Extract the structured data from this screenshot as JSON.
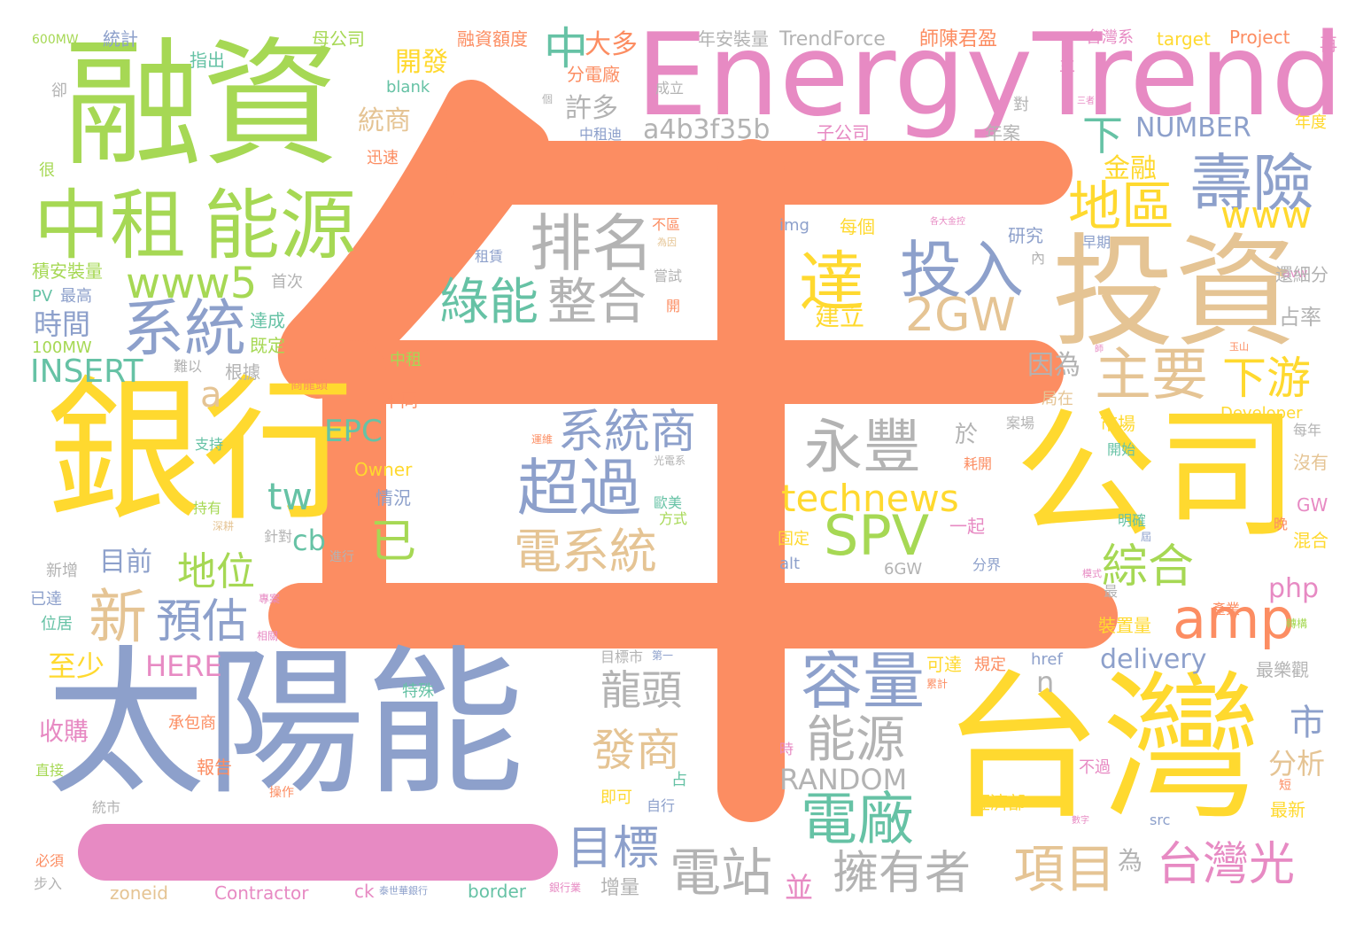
{
  "palette": {
    "orange": "#fc8d62",
    "blue": "#8da0cb",
    "pink": "#e78ac3",
    "green": "#a6d854",
    "yellow": "#ffd92f",
    "tan": "#e5c494",
    "gray": "#b3b3b3",
    "teal": "#66c2a5"
  },
  "words": [
    {
      "text": "年",
      "color": "orange",
      "size": 0,
      "drawn_as": "shape"
    },
    {
      "text": "EnergyTrend",
      "color": "pink"
    },
    {
      "text": "融資",
      "color": "green"
    },
    {
      "text": "投資",
      "color": "tan"
    },
    {
      "text": "公司",
      "color": "yellow"
    },
    {
      "text": "銀行",
      "color": "yellow"
    },
    {
      "text": "太陽能",
      "color": "blue"
    },
    {
      "text": "台灣",
      "color": "yellow"
    },
    {
      "text": "中租",
      "color": "green"
    },
    {
      "text": "能源",
      "color": "green"
    },
    {
      "text": "壽險",
      "color": "blue"
    },
    {
      "text": "排名",
      "color": "gray"
    },
    {
      "text": "投入",
      "color": "blue"
    },
    {
      "text": "達",
      "color": "yellow"
    },
    {
      "text": "地區",
      "color": "yellow"
    },
    {
      "text": "www",
      "color": "yellow"
    },
    {
      "text": "系統",
      "color": "blue"
    },
    {
      "text": "www5",
      "color": "green"
    },
    {
      "text": "綠能",
      "color": "teal"
    },
    {
      "text": "整合",
      "color": "gray"
    },
    {
      "text": "2GW",
      "color": "tan"
    },
    {
      "text": "主要",
      "color": "tan"
    },
    {
      "text": "下游",
      "color": "yellow"
    },
    {
      "text": "永豐",
      "color": "gray"
    },
    {
      "text": "系統商",
      "color": "blue"
    },
    {
      "text": "超過",
      "color": "blue"
    },
    {
      "text": "SPV",
      "color": "green"
    },
    {
      "text": "amp",
      "color": "orange"
    },
    {
      "text": "technews",
      "color": "yellow"
    },
    {
      "text": "電系統",
      "color": "tan"
    },
    {
      "text": "已",
      "color": "green"
    },
    {
      "text": "tw",
      "color": "teal"
    },
    {
      "text": "地位",
      "color": "green"
    },
    {
      "text": "新",
      "color": "tan"
    },
    {
      "text": "預估",
      "color": "blue"
    },
    {
      "text": "容量",
      "color": "blue"
    },
    {
      "text": "綜合",
      "color": "green"
    },
    {
      "text": "能源",
      "color": "gray"
    },
    {
      "text": "龍頭",
      "color": "gray"
    },
    {
      "text": "發商",
      "color": "tan"
    },
    {
      "text": "電廠",
      "color": "teal"
    },
    {
      "text": "電站",
      "color": "gray"
    },
    {
      "text": "擁有者",
      "color": "gray"
    },
    {
      "text": "項目",
      "color": "tan"
    },
    {
      "text": "台灣光",
      "color": "pink"
    },
    {
      "text": "目標",
      "color": "blue"
    },
    {
      "text": "RANDOM",
      "color": "gray"
    },
    {
      "text": "delivery",
      "color": "blue"
    },
    {
      "text": "a4b3f35b",
      "color": "gray"
    },
    {
      "text": "NUMBER",
      "color": "blue"
    },
    {
      "text": "中",
      "color": "teal"
    },
    {
      "text": "大多",
      "color": "orange"
    },
    {
      "text": "開發",
      "color": "yellow"
    },
    {
      "text": "統商",
      "color": "tan"
    },
    {
      "text": "許多",
      "color": "gray"
    },
    {
      "text": "金融",
      "color": "yellow"
    },
    {
      "text": "下",
      "color": "teal"
    },
    {
      "text": "php",
      "color": "pink"
    },
    {
      "text": "市",
      "color": "blue"
    },
    {
      "text": "分析",
      "color": "tan"
    },
    {
      "text": "因為",
      "color": "gray"
    },
    {
      "text": "INSERT",
      "color": "teal"
    },
    {
      "text": "時間",
      "color": "blue"
    },
    {
      "text": "EPC",
      "color": "teal"
    },
    {
      "text": "cb",
      "color": "teal"
    },
    {
      "text": "目前",
      "color": "blue"
    },
    {
      "text": "HERE",
      "color": "pink"
    },
    {
      "text": "至少",
      "color": "yellow"
    },
    {
      "text": "收購",
      "color": "pink"
    },
    {
      "text": "a",
      "color": "tan"
    },
    {
      "text": "n",
      "color": "gray"
    },
    {
      "text": "於",
      "color": "gray"
    },
    {
      "text": "建立",
      "color": "yellow"
    },
    {
      "text": "並",
      "color": "pink"
    },
    {
      "text": "為",
      "color": "gray"
    },
    {
      "text": "TrendForce",
      "color": "gray"
    },
    {
      "text": "年安裝量",
      "color": "gray"
    },
    {
      "text": "師陳君盈",
      "color": "orange"
    },
    {
      "text": "台灣系",
      "color": "pink"
    },
    {
      "text": "target",
      "color": "yellow"
    },
    {
      "text": "Project",
      "color": "orange"
    },
    {
      "text": "融資額度",
      "color": "orange"
    },
    {
      "text": "母公司",
      "color": "green"
    },
    {
      "text": "統計",
      "color": "blue"
    },
    {
      "text": "600MW",
      "color": "green"
    },
    {
      "text": "指出",
      "color": "teal"
    },
    {
      "text": "分電廠",
      "color": "orange"
    },
    {
      "text": "blank",
      "color": "teal"
    },
    {
      "text": "中租迪",
      "color": "blue"
    },
    {
      "text": "子公司",
      "color": "pink"
    },
    {
      "text": "成立",
      "color": "gray"
    },
    {
      "text": "年案",
      "color": "gray"
    },
    {
      "text": "再",
      "color": "pink"
    },
    {
      "text": "主",
      "color": "pink"
    },
    {
      "text": "三者",
      "color": "pink"
    },
    {
      "text": "年度",
      "color": "yellow"
    },
    {
      "text": "對",
      "color": "gray"
    },
    {
      "text": "卻",
      "color": "gray"
    },
    {
      "text": "很",
      "color": "green"
    },
    {
      "text": "迅速",
      "color": "orange"
    },
    {
      "text": "積安裝量",
      "color": "green"
    },
    {
      "text": "PV",
      "color": "teal"
    },
    {
      "text": "最高",
      "color": "blue"
    },
    {
      "text": "首次",
      "color": "gray"
    },
    {
      "text": "達成",
      "color": "teal"
    },
    {
      "text": "既定",
      "color": "green"
    },
    {
      "text": "100MW",
      "color": "green"
    },
    {
      "text": "難以",
      "color": "gray"
    },
    {
      "text": "根據",
      "color": "gray"
    },
    {
      "text": "中租",
      "color": "green"
    },
    {
      "text": "商龍頭",
      "color": "orange"
    },
    {
      "text": "不同",
      "color": "orange"
    },
    {
      "text": "支持",
      "color": "teal"
    },
    {
      "text": "Owner",
      "color": "yellow"
    },
    {
      "text": "情況",
      "color": "blue"
    },
    {
      "text": "持有",
      "color": "green"
    },
    {
      "text": "歐美",
      "color": "teal"
    },
    {
      "text": "方式",
      "color": "green"
    },
    {
      "text": "光電系",
      "color": "gray"
    },
    {
      "text": "運維",
      "color": "orange"
    },
    {
      "text": "深耕",
      "color": "tan"
    },
    {
      "text": "新增",
      "color": "gray"
    },
    {
      "text": "已達",
      "color": "blue"
    },
    {
      "text": "位居",
      "color": "teal"
    },
    {
      "text": "進行",
      "color": "gray"
    },
    {
      "text": "針對",
      "color": "gray"
    },
    {
      "text": "專案",
      "color": "pink"
    },
    {
      "text": "相關",
      "color": "pink"
    },
    {
      "text": "特殊",
      "color": "teal"
    },
    {
      "text": "承包商",
      "color": "orange"
    },
    {
      "text": "報告",
      "color": "orange"
    },
    {
      "text": "直接",
      "color": "green"
    },
    {
      "text": "操作",
      "color": "orange"
    },
    {
      "text": "必須",
      "color": "orange"
    },
    {
      "text": "步入",
      "color": "gray"
    },
    {
      "text": "統市",
      "color": "gray"
    },
    {
      "text": "zoneid",
      "color": "tan"
    },
    {
      "text": "Contractor",
      "color": "pink"
    },
    {
      "text": "ck",
      "color": "pink"
    },
    {
      "text": "泰世華銀行",
      "color": "blue"
    },
    {
      "text": "border",
      "color": "teal"
    },
    {
      "text": "銀行業",
      "color": "pink"
    },
    {
      "text": "增量",
      "color": "gray"
    },
    {
      "text": "即可",
      "color": "yellow"
    },
    {
      "text": "自行",
      "color": "blue"
    },
    {
      "text": "占",
      "color": "teal"
    },
    {
      "text": "目標市",
      "color": "gray"
    },
    {
      "text": "第一",
      "color": "blue"
    },
    {
      "text": "img",
      "color": "blue"
    },
    {
      "text": "每個",
      "color": "yellow"
    },
    {
      "text": "各大金控",
      "color": "pink"
    },
    {
      "text": "早期",
      "color": "blue"
    },
    {
      "text": "研究",
      "color": "blue"
    },
    {
      "text": "內",
      "color": "gray"
    },
    {
      "text": "不區",
      "color": "orange"
    },
    {
      "text": "為因",
      "color": "tan"
    },
    {
      "text": "嘗試",
      "color": "gray"
    },
    {
      "text": "租賃",
      "color": "blue"
    },
    {
      "text": "開",
      "color": "orange"
    },
    {
      "text": "avw",
      "color": "pink"
    },
    {
      "text": "還細分",
      "color": "gray"
    },
    {
      "text": "占率",
      "color": "gray"
    },
    {
      "text": "玉山",
      "color": "orange"
    },
    {
      "text": "局在",
      "color": "tan"
    },
    {
      "text": "案場",
      "color": "gray"
    },
    {
      "text": "市場",
      "color": "yellow"
    },
    {
      "text": "Developer",
      "color": "yellow"
    },
    {
      "text": "每年",
      "color": "gray"
    },
    {
      "text": "開始",
      "color": "teal"
    },
    {
      "text": "沒有",
      "color": "tan"
    },
    {
      "text": "耗開",
      "color": "orange"
    },
    {
      "text": "一起",
      "color": "pink"
    },
    {
      "text": "明確",
      "color": "teal"
    },
    {
      "text": "晚",
      "color": "orange"
    },
    {
      "text": "GW",
      "color": "pink"
    },
    {
      "text": "混合",
      "color": "yellow"
    },
    {
      "text": "固定",
      "color": "yellow"
    },
    {
      "text": "alt",
      "color": "blue"
    },
    {
      "text": "6GW",
      "color": "gray"
    },
    {
      "text": "分界",
      "color": "blue"
    },
    {
      "text": "模式",
      "color": "pink"
    },
    {
      "text": "最",
      "color": "gray"
    },
    {
      "text": "產業",
      "color": "orange"
    },
    {
      "text": "轉構",
      "color": "green"
    },
    {
      "text": "裝置量",
      "color": "yellow"
    },
    {
      "text": "最樂觀",
      "color": "gray"
    },
    {
      "text": "可達",
      "color": "yellow"
    },
    {
      "text": "規定",
      "color": "orange"
    },
    {
      "text": "href",
      "color": "blue"
    },
    {
      "text": "不過",
      "color": "pink"
    },
    {
      "text": "短",
      "color": "orange"
    },
    {
      "text": "最新",
      "color": "yellow"
    },
    {
      "text": "經濟部",
      "color": "yellow"
    },
    {
      "text": "src",
      "color": "blue"
    },
    {
      "text": "數字",
      "color": "pink"
    },
    {
      "text": "累計",
      "color": "orange"
    },
    {
      "text": "時",
      "color": "pink"
    },
    {
      "text": "個",
      "color": "gray"
    },
    {
      "text": "師",
      "color": "pink"
    },
    {
      "text": "屆",
      "color": "blue"
    }
  ]
}
